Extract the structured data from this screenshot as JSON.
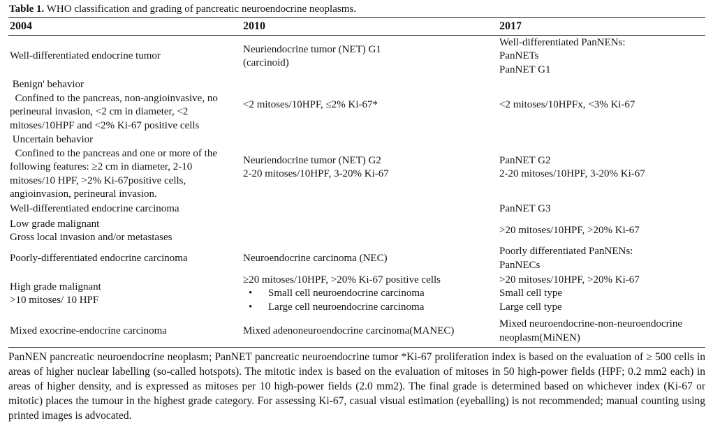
{
  "title": {
    "label": "Table 1.",
    "text": " WHO classification and grading of pancreatic neuroendocrine neoplasms."
  },
  "table": {
    "columns": [
      "2004",
      "2010",
      "2017"
    ],
    "rows": [
      {
        "c2004": [
          "Well-differentiated endocrine tumor"
        ],
        "c2010": [
          "Neuriendocrine tumor (NET) G1",
          "(carcinoid)"
        ],
        "c2017": [
          "Well-differentiated PanNENs:",
          "PanNETs",
          "PanNET G1"
        ]
      },
      {
        "c2004": [
          " Benign' behavior",
          "  Confined to the pancreas, non-angioinvasive, no perineural invasion, <2 cm in diameter, <2 mitoses/10HPF and <2% Ki-67 positive cells"
        ],
        "c2010": [
          "<2 mitoses/10HPF, ≤2% Ki-67*"
        ],
        "c2017": [
          "<2 mitoses/10HPFx, <3% Ki-67"
        ]
      },
      {
        "c2004": [
          " Uncertain behavior",
          "  Confined to the pancreas and one or more of the following features: ≥2 cm in diameter, 2-10 mitoses/10 HPF, >2% Ki-67positive cells, angioinvasion, perineural invasion."
        ],
        "c2010": [
          "Neuriendocrine tumor (NET) G2",
          "2-20 mitoses/10HPF, 3-20% Ki-67"
        ],
        "c2017": [
          "PanNET G2",
          "2-20 mitoses/10HPF, 3-20% Ki-67"
        ]
      },
      {
        "c2004": [
          "Well-differentiated endocrine carcinoma"
        ],
        "c2010": [],
        "c2017": [
          "PanNET G3"
        ]
      },
      {
        "c2004": [
          "Low grade malignant",
          "Gross local invasion and/or metastases"
        ],
        "c2010": [],
        "c2017": [
          ">20 mitoses/10HPF, >20% Ki-67"
        ]
      },
      {
        "c2004": [
          "Poorly-differentiated endocrine carcinoma"
        ],
        "c2010": [
          "Neuroendocrine carcinoma (NEC)"
        ],
        "c2017": [
          "Poorly differentiated PanNENs:",
          "PanNECs"
        ]
      },
      {
        "c2004": [
          "High grade malignant",
          ">10 mitoses/ 10 HPF"
        ],
        "c2010": [
          "≥20 mitoses/10HPF, >20% Ki-67 positive cells",
          "• Small cell neuroendocrine carcinoma",
          "• Large cell neuroendocrine carcinoma"
        ],
        "c2017": [
          ">20 mitoses/10HPF, >20% Ki-67",
          "Small cell type",
          "Large cell type"
        ]
      },
      {
        "c2004": [
          "Mixed exocrine-endocrine carcinoma"
        ],
        "c2010": [
          "Mixed adenoneuroendocrine carcinoma(MANEC)"
        ],
        "c2017": [
          "Mixed neuroendocrine-non-neuroendocrine",
          "neoplasm(MiNEN)"
        ]
      }
    ]
  },
  "footnote": "PanNEN pancreatic neuroendocrine neoplasm; PanNET pancreatic neuroendocrine tumor *Ki-67 proliferation index is based on the evaluation of ≥ 500 cells in areas of higher nuclear labelling (so-called hotspots). The mitotic index is based on the evaluation of mitoses in 50 high-power fields (HPF; 0.2 mm2 each) in areas of higher density, and is expressed as mitoses per 10 high-power fields (2.0 mm2). The final grade is determined based on whichever index (Ki-67 or mitotic) places the tumour in the highest grade category. For assessing Ki-67, casual visual estimation (eyeballing) is not recommended; manual counting using printed images is advocated."
}
